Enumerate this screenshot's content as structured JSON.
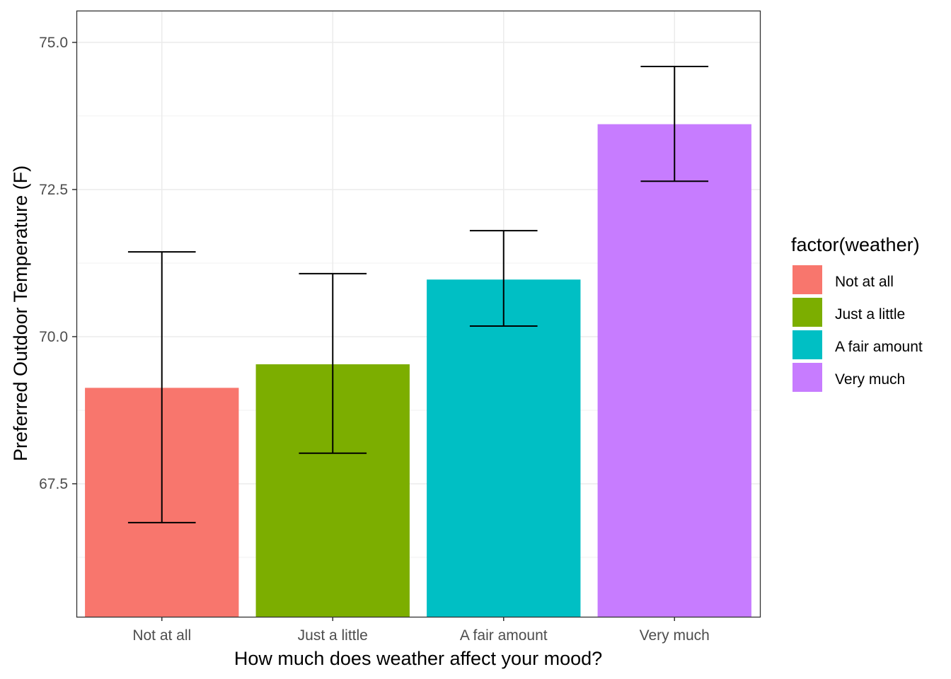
{
  "chart_data": {
    "type": "bar",
    "title": "",
    "xlabel": "How much does weather affect your mood?",
    "ylabel": "Preferred Outdoor Temperature (F)",
    "categories": [
      "Not at all",
      "Just a little",
      "A fair amount",
      "Very much"
    ],
    "values": [
      69.13,
      69.53,
      70.97,
      73.61
    ],
    "error_low": [
      66.84,
      68.02,
      70.18,
      72.64
    ],
    "error_high": [
      71.44,
      71.07,
      71.8,
      74.59
    ],
    "colors": [
      "#F8766D",
      "#7CAE00",
      "#00BFC4",
      "#C77CFF"
    ],
    "ylim": [
      65.24,
      75.54
    ],
    "yticks": [
      67.5,
      70.0,
      72.5,
      75.0
    ],
    "ytick_labels": [
      "67.5",
      "70.0",
      "72.5",
      "75.0"
    ],
    "grid": true,
    "legend": {
      "title": "factor(weather)",
      "placement": "right",
      "entries": [
        "Not at all",
        "Just a little",
        "A fair amount",
        "Very much"
      ]
    }
  }
}
